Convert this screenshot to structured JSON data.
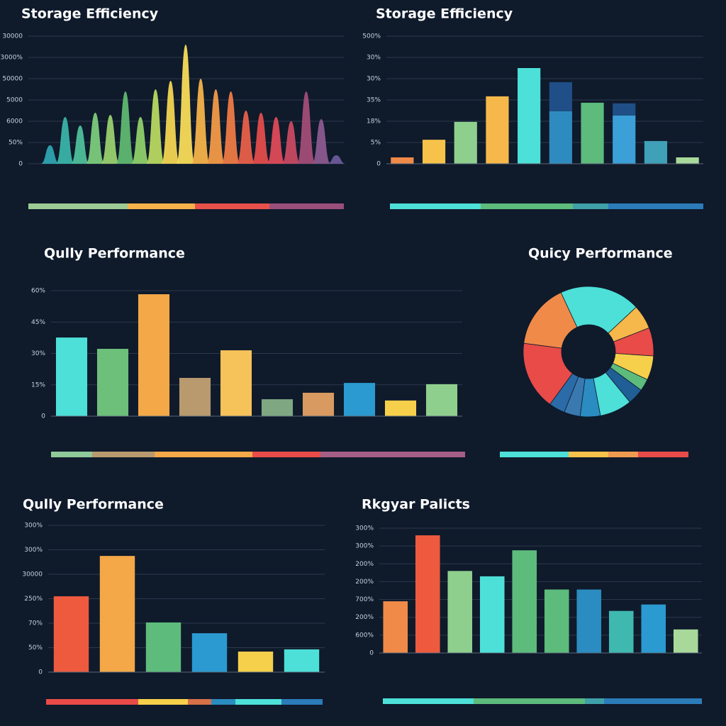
{
  "chart_data": [
    {
      "type": "area",
      "title": "Storage Efficiency",
      "categories": [
        null,
        null,
        null,
        null,
        null,
        null,
        null,
        null,
        null,
        null,
        null,
        null,
        null,
        null,
        null,
        null,
        null,
        null,
        null,
        null
      ],
      "values": [
        8.7,
        22,
        18,
        24,
        23,
        34,
        22,
        35,
        39,
        56,
        40,
        35,
        34,
        25,
        24,
        22,
        20,
        34,
        21,
        4
      ],
      "colors": [
        "#2fa3b0",
        "#3bb3a8",
        "#4fbf9a",
        "#7ccb7c",
        "#9ad06e",
        "#5fb870",
        "#8fcf6a",
        "#b8d860",
        "#f2d552",
        "#f8dc5a",
        "#f6b24a",
        "#f29a48",
        "#ee7a46",
        "#e8604a",
        "#e44c4c",
        "#de4a58",
        "#c84a62",
        "#a34d78",
        "#8b5a8e",
        "#6b5a9a"
      ],
      "ylim": [
        0,
        60
      ],
      "yticks": [
        0,
        {
          "value": 10,
          "label": "50%"
        },
        {
          "value": 20,
          "label": "6000"
        },
        {
          "value": 30,
          "label": "5000"
        },
        {
          "value": 40,
          "label": "50000"
        },
        {
          "value": 50,
          "label": "3000%"
        },
        {
          "value": 60,
          "label": "30000"
        }
      ],
      "grid": true
    },
    {
      "type": "bar",
      "title": "Storage Efficiency",
      "categories": [
        null,
        null,
        null,
        null,
        null,
        null,
        null,
        null,
        null,
        null
      ],
      "series": [
        {
          "values": [
            3,
            11.3,
            19.7,
            31.7,
            45,
            24.7,
            28.7,
            22.7,
            10.7,
            3
          ],
          "colors": [
            "#f08a48",
            "#f6c24a",
            "#8fcf8e",
            "#f6b84a",
            "#4de0d8",
            "#2e8bc0",
            "#5dbb7c",
            "#3b9fd8",
            "#3fa0b8",
            "#a8d89a"
          ]
        },
        {
          "values": [
            null,
            null,
            null,
            null,
            null,
            13.7,
            null,
            5.7,
            null,
            null
          ],
          "color": "#1f4f86"
        }
      ],
      "ylim": [
        0,
        60
      ],
      "yticks": [
        0,
        {
          "value": 10,
          "label": "5%"
        },
        {
          "value": 20,
          "label": "18%"
        },
        {
          "value": 30,
          "label": "35%"
        },
        {
          "value": 40,
          "label": "30%"
        },
        {
          "value": 50,
          "label": "30%"
        },
        {
          "value": 60,
          "label": "500%"
        }
      ],
      "grid": true
    },
    {
      "type": "bar",
      "title": "Qully Performance",
      "categories": [
        null,
        null,
        null,
        null,
        null,
        null,
        null,
        null,
        null,
        null
      ],
      "values": [
        37.6,
        32.2,
        58.3,
        18.3,
        31.5,
        8.1,
        11.2,
        15.9,
        7.5,
        15.3
      ],
      "colors": [
        "#4de0d8",
        "#6cc07a",
        "#f4a848",
        "#b89a6e",
        "#f6c25a",
        "#7fa882",
        "#d89a60",
        "#2a9ad0",
        "#f6d04a",
        "#8fcf8e"
      ],
      "ylim": [
        0,
        60
      ],
      "yticks": [
        0,
        {
          "value": 15,
          "label": "15%"
        },
        {
          "value": 30,
          "label": "30%"
        },
        {
          "value": 45,
          "label": "45%"
        },
        {
          "value": 60,
          "label": "60%"
        }
      ],
      "grid": true
    },
    {
      "type": "pie",
      "title": "Quicy Performance",
      "categories": [
        null,
        null,
        null,
        null,
        null,
        null,
        null,
        null,
        null,
        null,
        null,
        null
      ],
      "values": [
        20,
        6,
        7,
        6,
        3,
        4,
        8,
        5,
        4,
        4,
        17,
        16
      ],
      "colors": [
        "#4de0d8",
        "#f6b84a",
        "#e84b48",
        "#f6d04a",
        "#5dbb7c",
        "#1f5f96",
        "#4de0d8",
        "#2a8cc0",
        "#3a78b0",
        "#2b6ca8",
        "#e84b48",
        "#f08a48"
      ]
    },
    {
      "type": "bar",
      "title": "Qully Performance",
      "categories": [
        null,
        null,
        null,
        null,
        null,
        null
      ],
      "values": [
        31,
        47.5,
        20.3,
        15.9,
        8.4,
        9.3
      ],
      "colors": [
        "#ee5a3e",
        "#f4a848",
        "#5dbb7c",
        "#2a9ad0",
        "#f6d04a",
        "#4de0d8"
      ],
      "ylim": [
        0,
        60
      ],
      "yticks": [
        0,
        {
          "value": 10,
          "label": "50%"
        },
        {
          "value": 20,
          "label": "70%"
        },
        {
          "value": 30,
          "label": "250%"
        },
        {
          "value": 40,
          "label": "30000"
        },
        {
          "value": 50,
          "label": "300%"
        },
        {
          "value": 60,
          "label": "300%"
        }
      ],
      "grid": true
    },
    {
      "type": "bar",
      "title": "Rkgyar Palicts",
      "categories": [
        null,
        null,
        null,
        null,
        null,
        null,
        null,
        null,
        null,
        null
      ],
      "values": [
        29,
        66,
        46,
        43,
        57.6,
        35.6,
        35.6,
        23.6,
        27.2,
        13.2
      ],
      "colors": [
        "#f08a48",
        "#ee5a3e",
        "#8fcf8e",
        "#4de0d8",
        "#5dbb7c",
        "#5dbb7c",
        "#2a8cc0",
        "#3fb8b0",
        "#2a9ad0",
        "#a8d89a"
      ],
      "ylim": [
        0,
        70
      ],
      "yticks": [
        0,
        {
          "value": 10,
          "label": "600%"
        },
        {
          "value": 20,
          "label": "200%"
        },
        {
          "value": 30,
          "label": "700%"
        },
        {
          "value": 40,
          "label": "200%"
        },
        {
          "value": 50,
          "label": "200%"
        },
        {
          "value": 60,
          "label": "300%"
        },
        {
          "value": 70,
          "label": "300%"
        }
      ],
      "grid": true
    }
  ]
}
